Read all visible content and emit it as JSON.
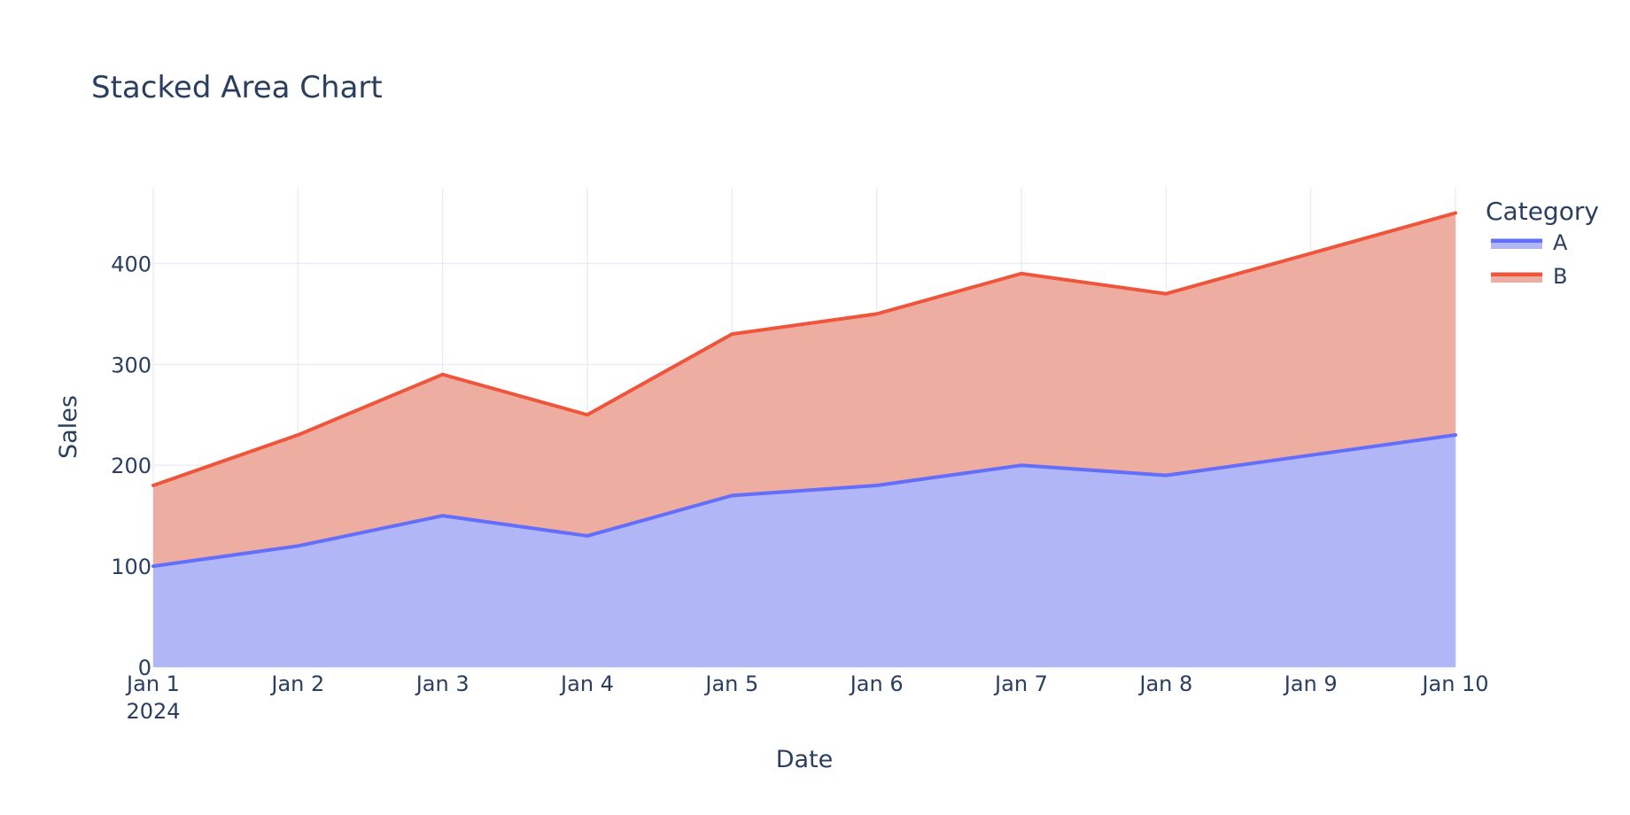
{
  "chart_data": {
    "type": "area",
    "stacked": true,
    "title": "Stacked Area Chart",
    "xlabel": "Date",
    "ylabel": "Sales",
    "categories": [
      "Jan 1",
      "Jan 2",
      "Jan 3",
      "Jan 4",
      "Jan 5",
      "Jan 6",
      "Jan 7",
      "Jan 8",
      "Jan 9",
      "Jan 10"
    ],
    "year_label": "2024",
    "y_ticks": [
      0,
      100,
      200,
      300,
      400
    ],
    "ylim": [
      0,
      475
    ],
    "grid": true,
    "legend": {
      "title": "Category",
      "placement": "top-right"
    },
    "series": [
      {
        "name": "A",
        "values": [
          100,
          120,
          150,
          130,
          170,
          180,
          200,
          190,
          210,
          230
        ],
        "line_color": "#636efa",
        "fill_color": "#b1b6f7"
      },
      {
        "name": "B",
        "values": [
          80,
          110,
          140,
          120,
          160,
          170,
          190,
          180,
          200,
          220
        ],
        "line_color": "#ef553b",
        "fill_color": "#eeada1"
      }
    ]
  }
}
